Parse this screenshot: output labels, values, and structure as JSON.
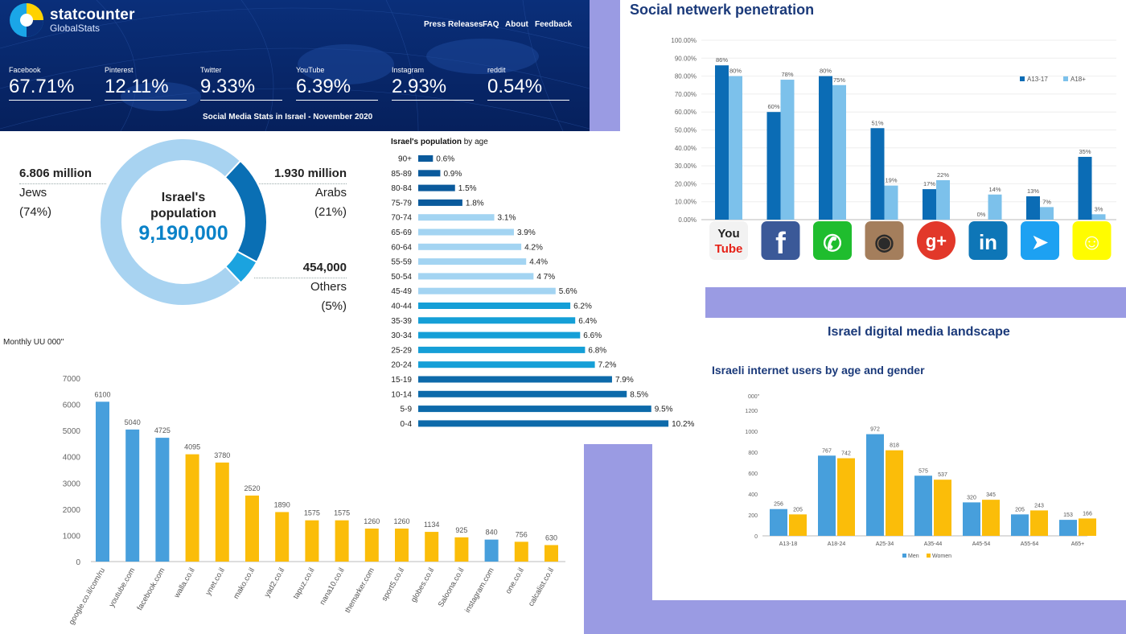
{
  "statcounter": {
    "brand": "statcounter",
    "brand_sub": "GlobalStats",
    "nav": [
      "Press Releases",
      "FAQ",
      "About",
      "Feedback"
    ],
    "stats": [
      {
        "label": "Facebook",
        "value": "67.71%"
      },
      {
        "label": "Pinterest",
        "value": "12.11%"
      },
      {
        "label": "Twitter",
        "value": "9.33%"
      },
      {
        "label": "YouTube",
        "value": "6.39%"
      },
      {
        "label": "Instagram",
        "value": "2.93%"
      },
      {
        "label": "reddit",
        "value": "0.54%"
      }
    ],
    "subtitle": "Social Media Stats in Israel - November 2020"
  },
  "population": {
    "center_line1": "Israel's",
    "center_line2": "population",
    "center_value": "9,190,000",
    "colors": {
      "jews": "#a8d3f1",
      "arabs": "#0a6fb4",
      "others": "#1ba3df"
    },
    "jews": {
      "amount": "6.806 million",
      "name": "Jews",
      "pct": "(74%)",
      "value": 74
    },
    "arabs": {
      "amount": "1.930 million",
      "name": "Arabs",
      "pct": "(21%)",
      "value": 21
    },
    "others": {
      "amount": "454,000",
      "name": "Others",
      "pct": "(5%)",
      "value": 5
    }
  },
  "chart_data": [
    {
      "type": "bar",
      "title": "Social netwerk penetration",
      "categories": [
        "YouTube",
        "Facebook",
        "WhatsApp",
        "Instagram",
        "Google+",
        "LinkedIn",
        "Twitter",
        "Snapchat"
      ],
      "series": [
        {
          "name": "A13-17",
          "values": [
            86,
            60,
            80,
            51,
            17,
            0,
            13,
            35
          ],
          "labels": [
            "86%",
            "60%",
            "80%",
            "51%",
            "17%",
            "0%",
            "13%",
            "35%"
          ],
          "color": "#0b6cb5"
        },
        {
          "name": "A18+",
          "values": [
            80,
            78,
            75,
            19,
            22,
            14,
            7,
            3
          ],
          "labels": [
            "80%",
            "78%",
            "75%",
            "19%",
            "22%",
            "14%",
            "7%",
            "3%"
          ],
          "color": "#7cc1eb"
        }
      ],
      "yticks": [
        "0.00%",
        "10.00%",
        "20.00%",
        "30.00%",
        "40.00%",
        "50.00%",
        "60.00%",
        "70.00%",
        "80.00%",
        "90.00%",
        "100.00%"
      ],
      "ylim": [
        0,
        100
      ],
      "legend": "top-right"
    },
    {
      "type": "bar",
      "orientation": "horizontal",
      "title_bold": "Israel's population",
      "title_rest": " by age",
      "categories": [
        "90+",
        "85-89",
        "80-84",
        "75-79",
        "70-74",
        "65-69",
        "60-64",
        "55-59",
        "50-54",
        "45-49",
        "40-44",
        "35-39",
        "30-34",
        "25-29",
        "20-24",
        "15-19",
        "10-14",
        "5-9",
        "0-4"
      ],
      "values": [
        0.6,
        0.9,
        1.5,
        1.8,
        3.1,
        3.9,
        4.2,
        4.4,
        4.7,
        5.6,
        6.2,
        6.4,
        6.6,
        6.8,
        7.2,
        7.9,
        8.5,
        9.5,
        10.2
      ],
      "labels": [
        "0.6%",
        "0.9%",
        "1.5%",
        "1.8%",
        "3.1%",
        "3.9%",
        "4.2%",
        "4.4%",
        "4 7%",
        "5.6%",
        "6.2%",
        "6.4%",
        "6.6%",
        "6.8%",
        "7.2%",
        "7.9%",
        "8.5%",
        "9.5%",
        "10.2%"
      ],
      "colors": {
        "old": "#0a5a9c",
        "middle": "#a3d4f2",
        "adult": "#159fd7",
        "young": "#0d6aaa"
      }
    },
    {
      "type": "bar",
      "ylabel": "Monthly UU 000\"",
      "categories": [
        "google.co.il/com/ru",
        "youtube.com",
        "facebook.com",
        "walla.co.il",
        "ynet.co.il",
        "mako.co.il",
        "yad2.co.il",
        "tapuz.co.il",
        "nana10.co.il",
        "themarker.com",
        "sport5.co.il",
        "globes.co.il",
        "Saloona.co.il",
        "instagram.com",
        "one.co.il",
        "calcalist.co.il"
      ],
      "values": [
        6100,
        5040,
        4725,
        4095,
        3780,
        2520,
        1890,
        1575,
        1575,
        1260,
        1260,
        1134,
        925,
        840,
        756,
        630
      ],
      "color_group": [
        "blue",
        "blue",
        "blue",
        "yellow",
        "yellow",
        "yellow",
        "yellow",
        "yellow",
        "yellow",
        "yellow",
        "yellow",
        "yellow",
        "yellow",
        "blue",
        "yellow",
        "yellow"
      ],
      "colors": {
        "blue": "#479fdc",
        "yellow": "#fbbd09"
      },
      "yticks": [
        "0",
        "1000",
        "2000",
        "3000",
        "4000",
        "5000",
        "6000",
        "7000"
      ],
      "ylim": [
        0,
        7000
      ]
    },
    {
      "type": "bar",
      "title": "Israeli internet users by age and gender",
      "ylabel": "000\"",
      "categories": [
        "A13-18",
        "A18-24",
        "A25-34",
        "A35-44",
        "A45-54",
        "A55-64",
        "A65+"
      ],
      "series": [
        {
          "name": "Men",
          "values": [
            256,
            767,
            972,
            575,
            320,
            205,
            153
          ],
          "color": "#479fdc"
        },
        {
          "name": "Women",
          "values": [
            205,
            742,
            818,
            537,
            345,
            243,
            166
          ],
          "color": "#fbbd09"
        }
      ],
      "yticks": [
        "0",
        "200",
        "400",
        "600",
        "800",
        "1000",
        "1200"
      ],
      "ylim": [
        0,
        1200
      ],
      "legend": "bottom"
    }
  ],
  "landscape_title": "Israel digital media landscape"
}
